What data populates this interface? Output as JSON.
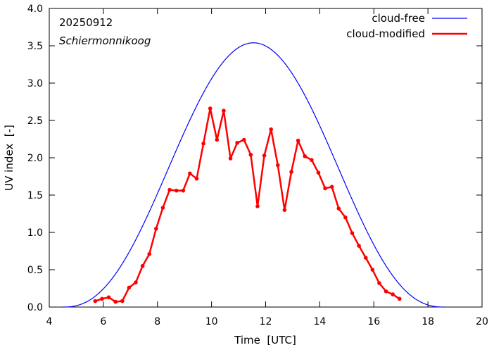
{
  "chart_data": {
    "type": "line",
    "title": "",
    "xlabel": "Time  [UTC]",
    "ylabel": "UV index  [-]",
    "xlim": [
      4,
      20
    ],
    "ylim": [
      0,
      4
    ],
    "xticks": [
      4,
      6,
      8,
      10,
      12,
      14,
      16,
      18,
      20
    ],
    "yticks": [
      0.0,
      0.5,
      1.0,
      1.5,
      2.0,
      2.5,
      3.0,
      3.5,
      4.0
    ],
    "xtick_labels": [
      "4",
      "6",
      "8",
      "10",
      "12",
      "14",
      "16",
      "18",
      "20"
    ],
    "ytick_labels": [
      "0.0",
      "0.5",
      "1.0",
      "1.5",
      "2.0",
      "2.5",
      "3.0",
      "3.5",
      "4.0"
    ],
    "annotations": {
      "date": "20250912",
      "location": "Schiermonnikoog"
    },
    "legend_position": "top-right",
    "series": [
      {
        "name": "cloud-free",
        "color": "#0000ff",
        "style": "line",
        "model": {
          "peak": 3.54,
          "center": 11.55,
          "sunrise": 4.5,
          "sunset": 18.6
        }
      },
      {
        "name": "cloud-modified",
        "color": "#ff0000",
        "style": "line-points",
        "x": [
          5.7,
          5.95,
          6.2,
          6.45,
          6.7,
          6.95,
          7.2,
          7.45,
          7.7,
          7.95,
          8.2,
          8.45,
          8.7,
          8.95,
          9.2,
          9.45,
          9.7,
          9.95,
          10.2,
          10.45,
          10.7,
          10.95,
          11.2,
          11.45,
          11.7,
          11.95,
          12.2,
          12.45,
          12.7,
          12.95,
          13.2,
          13.45,
          13.7,
          13.95,
          14.2,
          14.45,
          14.7,
          14.95,
          15.2,
          15.45,
          15.7,
          15.95,
          16.2,
          16.45,
          16.7,
          16.95
        ],
        "y": [
          0.08,
          0.11,
          0.13,
          0.07,
          0.08,
          0.26,
          0.33,
          0.55,
          0.71,
          1.05,
          1.33,
          1.57,
          1.56,
          1.56,
          1.79,
          1.72,
          2.19,
          2.66,
          2.24,
          2.63,
          1.99,
          2.2,
          2.24,
          2.04,
          1.35,
          2.03,
          2.38,
          1.9,
          1.3,
          1.81,
          2.23,
          2.02,
          1.97,
          1.8,
          1.59,
          1.61,
          1.32,
          1.2,
          0.99,
          0.82,
          0.66,
          0.5,
          0.32,
          0.21,
          0.17,
          0.11
        ]
      }
    ]
  }
}
